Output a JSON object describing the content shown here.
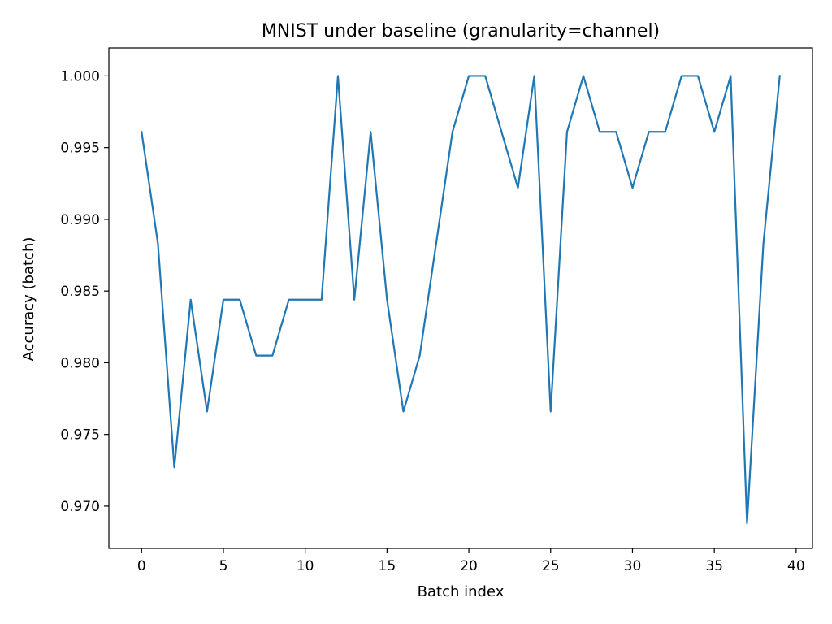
{
  "chart_data": {
    "type": "line",
    "title": "MNIST under baseline (granularity=channel)",
    "xlabel": "Batch index",
    "ylabel": "Accuracy (batch)",
    "xlim": [
      -2,
      41
    ],
    "ylim": [
      0.96705,
      1.00195
    ],
    "grid": false,
    "x_ticks": [
      0,
      5,
      10,
      15,
      20,
      25,
      30,
      35,
      40
    ],
    "x_tick_labels": [
      "0",
      "5",
      "10",
      "15",
      "20",
      "25",
      "30",
      "35",
      "40"
    ],
    "y_ticks": [
      0.97,
      0.975,
      0.98,
      0.985,
      0.99,
      0.995,
      1.0
    ],
    "y_tick_labels": [
      "0.970",
      "0.975",
      "0.980",
      "0.985",
      "0.990",
      "0.995",
      "1.000"
    ],
    "series": [
      {
        "color": "#1f77b4",
        "x": [
          0,
          1,
          2,
          3,
          4,
          5,
          6,
          7,
          8,
          9,
          10,
          11,
          12,
          13,
          14,
          15,
          16,
          17,
          18,
          19,
          20,
          21,
          22,
          23,
          24,
          25,
          26,
          27,
          28,
          29,
          30,
          31,
          32,
          33,
          34,
          35,
          36,
          37,
          38,
          39
        ],
        "y": [
          0.9961,
          0.9883,
          0.9727,
          0.9844,
          0.9766,
          0.9844,
          0.9844,
          0.9805,
          0.9805,
          0.9844,
          0.9844,
          0.9844,
          1.0,
          0.9844,
          0.9961,
          0.9844,
          0.9766,
          0.9805,
          0.9883,
          0.9961,
          1.0,
          1.0,
          0.9961,
          0.9922,
          1.0,
          0.9766,
          0.9961,
          1.0,
          0.9961,
          0.9961,
          0.9922,
          0.9961,
          0.9961,
          1.0,
          1.0,
          0.9961,
          1.0,
          0.9688,
          0.9883,
          1.0
        ]
      }
    ]
  }
}
